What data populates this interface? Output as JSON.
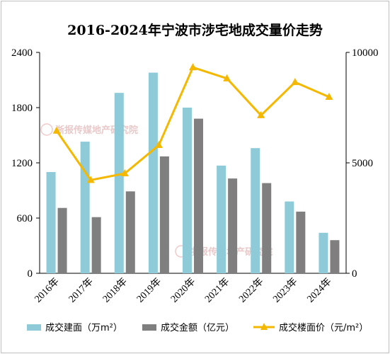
{
  "chart_data": {
    "type": "bar",
    "title": "2016-2024年宁波市涉宅地成交量价走势",
    "categories": [
      "2016年",
      "2017年",
      "2018年",
      "2019年",
      "2020年",
      "2021年",
      "2022年",
      "2023年",
      "2024年"
    ],
    "series": [
      {
        "name": "成交建面（万m²）",
        "type": "bar",
        "axis": "left",
        "values": [
          1100,
          1430,
          1960,
          2180,
          1800,
          1170,
          1360,
          780,
          440
        ],
        "color": "#8ecad8"
      },
      {
        "name": "成交金额（亿元）",
        "type": "bar",
        "axis": "left",
        "values": [
          710,
          610,
          890,
          1270,
          1680,
          1030,
          980,
          670,
          360
        ],
        "color": "#7f7f7f"
      },
      {
        "name": "成交楼面价（元/m²）",
        "type": "line",
        "axis": "right",
        "values": [
          6450,
          4220,
          4520,
          5800,
          9320,
          8820,
          7150,
          8650,
          7980
        ],
        "color": "#f5b800"
      }
    ],
    "y_left": {
      "ylim": [
        0,
        2400
      ],
      "ticks": [
        "0",
        "600",
        "1200",
        "1800",
        "2400"
      ]
    },
    "y_right": {
      "ylim": [
        0,
        10000
      ],
      "ticks": [
        "0",
        "5000",
        "10000"
      ]
    },
    "legend_position": "bottom",
    "grid": false,
    "watermark": "浙报传媒地产研究院"
  }
}
